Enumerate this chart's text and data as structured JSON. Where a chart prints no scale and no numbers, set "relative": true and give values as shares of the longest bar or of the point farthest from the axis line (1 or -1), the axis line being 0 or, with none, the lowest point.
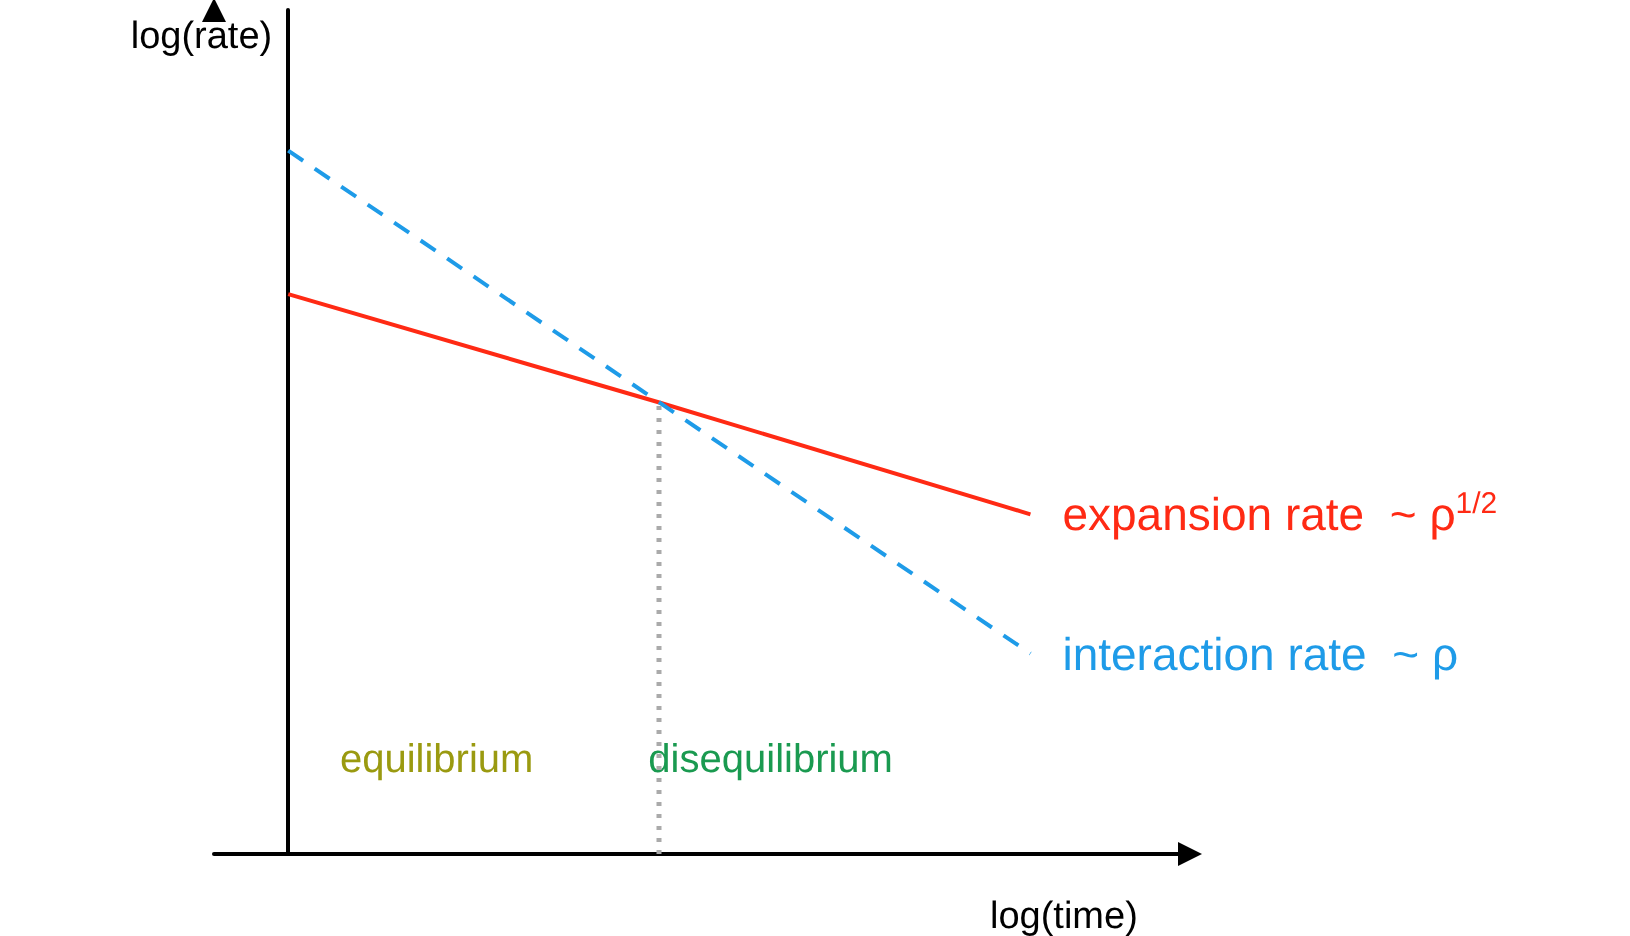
{
  "chart_data": {
    "type": "line",
    "relative": true,
    "xlabel": "log(time)",
    "ylabel": "log(rate)",
    "categories": [
      null,
      null,
      null
    ],
    "series": [
      {
        "name": "expansion rate  ~ ρ$^{1/2}$",
        "color": "#ff2a14",
        "values": [
          0.796,
          0.642,
          0.483
        ],
        "line_style": "solid"
      },
      {
        "name": "interaction rate  ~ ρ",
        "color": "#1e9be8",
        "values": [
          1,
          0.642,
          0.285
        ],
        "line_style": "dashed"
      }
    ],
    "annotations": [
      "equilibrium",
      "disequilibrium"
    ],
    "grid": false,
    "marker": "none"
  }
}
